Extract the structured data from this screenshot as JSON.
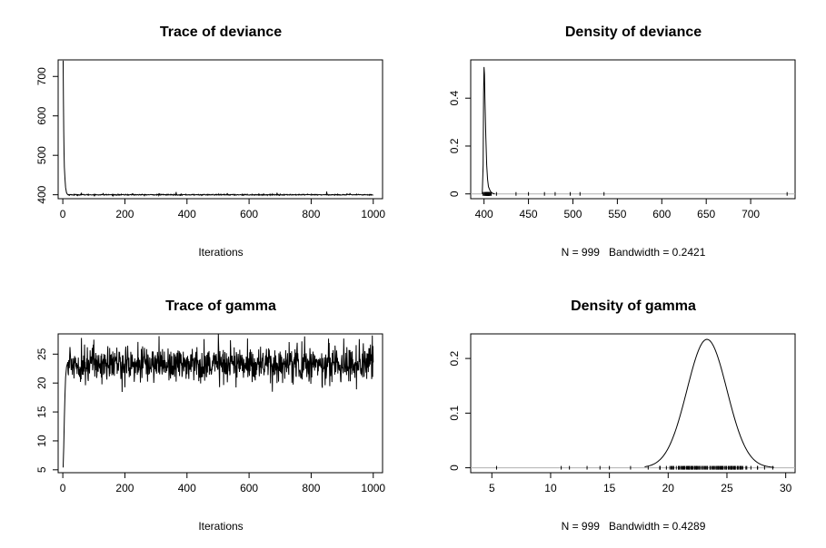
{
  "chart_data": [
    {
      "type": "line",
      "title": "Trace of deviance",
      "xlabel": "Iterations",
      "ylabel": "",
      "xlim": [
        -15,
        1030
      ],
      "ylim": [
        390,
        742
      ],
      "xticks": [
        0,
        200,
        400,
        600,
        800,
        1000
      ],
      "yticks": [
        400,
        500,
        600,
        700
      ],
      "trace": {
        "n": 1000,
        "burn_in": [
          [
            1,
            740
          ],
          [
            2,
            640
          ],
          [
            3,
            560
          ],
          [
            4,
            505
          ],
          [
            5,
            470
          ],
          [
            7,
            440
          ],
          [
            9,
            418
          ],
          [
            12,
            405
          ],
          [
            15,
            401
          ]
        ],
        "level": 400,
        "noise_sd": 0.6,
        "spikes": [
          [
            60,
            405
          ],
          [
            130,
            404
          ],
          [
            225,
            404
          ],
          [
            310,
            404
          ],
          [
            365,
            407
          ],
          [
            530,
            404
          ],
          [
            690,
            405
          ],
          [
            850,
            408
          ],
          [
            925,
            404
          ]
        ]
      },
      "grid": false
    },
    {
      "type": "area",
      "title": "Density of deviance",
      "xlabel": "N = 999   Bandwidth = 0.2421",
      "ylabel": "",
      "xlim": [
        385,
        750
      ],
      "ylim": [
        -0.02,
        0.56
      ],
      "xticks": [
        400,
        450,
        500,
        550,
        600,
        650,
        700
      ],
      "yticks": [
        0.0,
        0.2,
        0.4
      ],
      "density": {
        "x": [
          398,
          399,
          399.5,
          400,
          400.5,
          401,
          402,
          403,
          404,
          405,
          407,
          409,
          412
        ],
        "y": [
          0,
          0.12,
          0.42,
          0.53,
          0.5,
          0.4,
          0.24,
          0.12,
          0.06,
          0.03,
          0.012,
          0.004,
          0
        ]
      },
      "rug": [
        [
          399,
          408,
          40
        ],
        414,
        436,
        450,
        468,
        480,
        497,
        508,
        535,
        741
      ],
      "grid": false
    },
    {
      "type": "line",
      "title": "Trace of gamma",
      "xlabel": "Iterations",
      "ylabel": "",
      "xlim": [
        -15,
        1030
      ],
      "ylim": [
        4.5,
        28.5
      ],
      "xticks": [
        0,
        200,
        400,
        600,
        800,
        1000
      ],
      "yticks": [
        5,
        10,
        15,
        20,
        25
      ],
      "trace": {
        "n": 1000,
        "burn_in": [
          [
            1,
            5.4
          ],
          [
            3,
            9
          ],
          [
            5,
            14
          ],
          [
            7,
            18
          ],
          [
            9,
            21
          ],
          [
            12,
            22.8
          ],
          [
            15,
            23.4
          ]
        ],
        "level": 23.3,
        "noise_sd": 1.5,
        "spikes": [
          [
            60,
            27.8
          ],
          [
            100,
            27.5
          ],
          [
            230,
            20.2
          ],
          [
            310,
            28.1
          ],
          [
            455,
            27.6
          ],
          [
            540,
            27.4
          ],
          [
            595,
            27.7
          ],
          [
            675,
            18.5
          ],
          [
            690,
            20.0
          ],
          [
            770,
            27.2
          ],
          [
            835,
            19.5
          ],
          [
            905,
            27.7
          ],
          [
            955,
            27.6
          ]
        ]
      },
      "grid": false
    },
    {
      "type": "area",
      "title": "Density of gamma",
      "xlabel": "N = 999   Bandwidth = 0.4289",
      "ylabel": "",
      "xlim": [
        3.2,
        30.8
      ],
      "ylim": [
        -0.009,
        0.245
      ],
      "xticks": [
        5,
        10,
        15,
        20,
        25,
        30
      ],
      "yticks": [
        0.0,
        0.1,
        0.2
      ],
      "density": {
        "mean": 23.3,
        "sd": 1.7,
        "peak": 0.235,
        "from": 18.0,
        "to": 29.0
      },
      "rug": [
        [
          19.3,
          27.6,
          120
        ],
        5.4,
        10.9,
        11.6,
        13.1,
        14.2,
        15.0,
        16.8,
        18.3,
        28.2,
        28.9
      ],
      "grid": false
    }
  ],
  "colors": {
    "line": "#000000",
    "baseline": "#b0b0b0",
    "axis": "#000000"
  }
}
